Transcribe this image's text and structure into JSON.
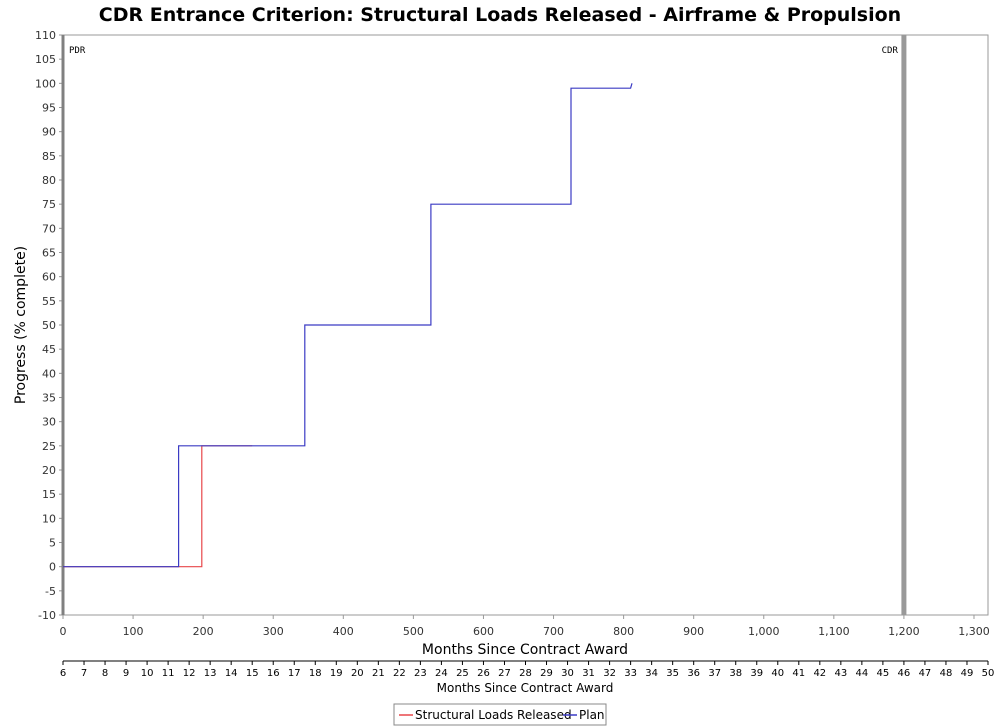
{
  "chart_data": {
    "type": "line",
    "title": "CDR Entrance Criterion: Structural Loads Released - Airframe & Propulsion",
    "xlabel": "Months Since Contract Award",
    "ylabel": "Progress (% complete)",
    "xlim": [
      0,
      1320
    ],
    "ylim": [
      -10,
      110
    ],
    "x_ticks": [
      "0",
      "100",
      "200",
      "300",
      "400",
      "500",
      "600",
      "700",
      "800",
      "900",
      "1,000",
      "1,100",
      "1,200",
      "1,300"
    ],
    "y_ticks": [
      -10,
      -5,
      0,
      5,
      10,
      15,
      20,
      25,
      30,
      35,
      40,
      45,
      50,
      55,
      60,
      65,
      70,
      75,
      80,
      85,
      90,
      95,
      100,
      105,
      110
    ],
    "secondary_axis": {
      "label": "Months Since Contract Award",
      "range": [
        6,
        50
      ],
      "ticks": [
        6,
        7,
        8,
        9,
        10,
        11,
        12,
        13,
        14,
        15,
        16,
        17,
        18,
        19,
        20,
        21,
        22,
        23,
        24,
        25,
        26,
        27,
        28,
        29,
        30,
        31,
        32,
        33,
        34,
        35,
        36,
        37,
        38,
        39,
        40,
        41,
        42,
        43,
        44,
        45,
        46,
        47,
        48,
        49,
        50
      ]
    },
    "markers": [
      {
        "label": "PDR",
        "x": 0,
        "color": "#808080"
      },
      {
        "label": "CDR",
        "x": 1200,
        "color": "#999999"
      }
    ],
    "series": [
      {
        "name": "Structural Loads Released",
        "color": "#e8474a",
        "points": [
          [
            0,
            0
          ],
          [
            198,
            0
          ],
          [
            198,
            25
          ],
          [
            270,
            25
          ]
        ]
      },
      {
        "name": "Plan",
        "color": "#3b3bc4",
        "points": [
          [
            0,
            0
          ],
          [
            165,
            0
          ],
          [
            165,
            25
          ],
          [
            345,
            25
          ],
          [
            345,
            50
          ],
          [
            525,
            50
          ],
          [
            525,
            75
          ],
          [
            725,
            75
          ],
          [
            725,
            99
          ],
          [
            810,
            99
          ],
          [
            812,
            100
          ]
        ]
      }
    ],
    "legend": {
      "position": "bottom-center"
    },
    "grid": false
  }
}
